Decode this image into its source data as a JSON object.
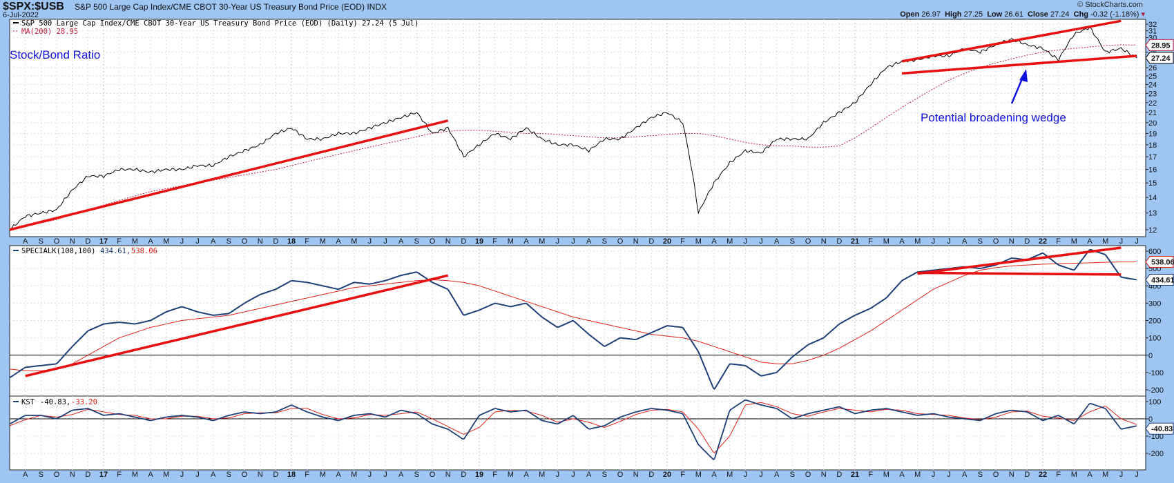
{
  "header": {
    "symbol": "$SPX:$USB",
    "name": "S&P 500 Large Cap Index/CME CBOT 30-Year US Treasury Bond Price (EOD)",
    "exchange": "INDX",
    "date": "6-Jul-2022",
    "copyright": "© StockCharts.com",
    "open_label": "Open",
    "open": "26.97",
    "high_label": "High",
    "high": "27.25",
    "low_label": "Low",
    "low": "26.61",
    "close_label": "Close",
    "close": "27.24",
    "chg_label": "Chg",
    "chg": "-0.32 (-1.18%)"
  },
  "colors": {
    "background": "#9fc5f2",
    "price": "#000000",
    "ma": "#c0203a",
    "indicator": "#1c3f78",
    "signal": "#e0201a",
    "trendline": "#e81010",
    "annotation": "#1010e0"
  },
  "chart_data": [
    {
      "type": "line",
      "panel": "price",
      "scale": "log",
      "legend": [
        "S&P 500 Large Cap Index/CME CBOT 30-Year US Treasury Bond Price (EOD) (Daily) 27.24 (5 Jul)",
        "MA(200) 28.95"
      ],
      "annotations": [
        "Stock/Bond Ratio",
        "Potential broadening wedge"
      ],
      "x_start": "2016-07",
      "x_end": "2022-07",
      "x_step": "month",
      "ylim": [
        12,
        32
      ],
      "yticks": [
        12,
        13,
        14,
        15,
        16,
        17,
        18,
        19,
        20,
        21,
        22,
        23,
        24,
        25,
        26,
        28,
        30,
        31,
        32
      ],
      "last_value_tags": [
        "28.95",
        "27.24"
      ],
      "series": [
        {
          "name": "S&P 500 Large Cap Index/CME CBOT 30-Year US Treasury Bond Price (EOD)",
          "values": [
            12.0,
            12.8,
            13.0,
            13.2,
            14.5,
            15.5,
            15.5,
            16.0,
            16.0,
            15.8,
            16.0,
            16.0,
            16.3,
            16.3,
            17.0,
            17.5,
            18.0,
            19.0,
            19.5,
            18.5,
            18.5,
            19.0,
            19.0,
            19.5,
            20.0,
            20.5,
            21.0,
            19.0,
            19.5,
            17.0,
            18.0,
            19.0,
            18.5,
            19.5,
            18.5,
            18.0,
            18.0,
            17.5,
            18.5,
            18.5,
            19.5,
            20.5,
            21.0,
            20.0,
            13.0,
            15.0,
            16.5,
            17.5,
            17.3,
            18.5,
            18.5,
            18.5,
            20.0,
            21.0,
            22.0,
            24.0,
            26.0,
            26.8,
            27.0,
            27.5,
            27.5,
            28.5,
            28.0,
            29.0,
            29.8,
            29.0,
            28.5,
            27.0,
            30.5,
            31.5,
            28.0,
            28.5,
            27.24
          ]
        },
        {
          "name": "MA(200)",
          "values": [
            12.0,
            12.2,
            12.4,
            12.6,
            12.9,
            13.2,
            13.5,
            13.8,
            14.1,
            14.4,
            14.6,
            14.8,
            15.0,
            15.2,
            15.4,
            15.6,
            15.8,
            16.0,
            16.3,
            16.6,
            16.9,
            17.2,
            17.5,
            17.8,
            18.1,
            18.4,
            18.7,
            19.0,
            19.2,
            19.3,
            19.3,
            19.2,
            19.1,
            19.0,
            19.0,
            18.9,
            18.8,
            18.7,
            18.6,
            18.6,
            18.7,
            18.8,
            18.9,
            19.0,
            19.0,
            18.8,
            18.5,
            18.2,
            18.0,
            17.9,
            17.9,
            17.8,
            17.8,
            17.9,
            18.6,
            19.5,
            20.5,
            21.5,
            22.5,
            23.5,
            24.5,
            25.3,
            26.0,
            26.6,
            27.1,
            27.6,
            28.0,
            28.3,
            28.5,
            28.7,
            28.9,
            29.0,
            28.95
          ]
        }
      ],
      "trendlines": [
        {
          "from": [
            "2016-07",
            12.0
          ],
          "to": [
            "2018-11",
            20.2
          ]
        },
        {
          "from": [
            "2021-04",
            26.8
          ],
          "to": [
            "2022-06",
            32.5
          ]
        },
        {
          "from": [
            "2021-04",
            25.3
          ],
          "to": [
            "2022-07",
            27.5
          ]
        }
      ]
    },
    {
      "type": "line",
      "panel": "specialk",
      "legend": {
        "name": "SPECIALK(100,100)",
        "value": "434.61",
        "signal": "538.06"
      },
      "ylim": [
        -200,
        600
      ],
      "yticks": [
        -200,
        -100,
        0,
        100,
        200,
        300,
        400,
        500,
        600
      ],
      "series": [
        {
          "name": "SPECIALK(100,100)",
          "values": [
            -130,
            -70,
            -60,
            -50,
            50,
            140,
            180,
            190,
            180,
            200,
            250,
            280,
            250,
            230,
            240,
            300,
            350,
            380,
            430,
            420,
            400,
            380,
            420,
            410,
            430,
            460,
            480,
            420,
            380,
            230,
            260,
            300,
            280,
            300,
            220,
            160,
            200,
            120,
            50,
            100,
            90,
            130,
            170,
            160,
            20,
            -200,
            -50,
            -60,
            -120,
            -100,
            -10,
            60,
            100,
            180,
            230,
            270,
            330,
            430,
            480,
            490,
            500,
            510,
            500,
            520,
            560,
            550,
            590,
            520,
            490,
            610,
            580,
            450,
            434.61
          ]
        },
        {
          "name": "signal",
          "values": [
            -80,
            -90,
            -90,
            -80,
            -50,
            0,
            50,
            100,
            130,
            160,
            180,
            200,
            210,
            220,
            230,
            250,
            270,
            290,
            310,
            330,
            350,
            370,
            390,
            400,
            410,
            420,
            430,
            435,
            430,
            420,
            400,
            370,
            340,
            310,
            280,
            250,
            220,
            200,
            180,
            160,
            140,
            120,
            110,
            100,
            80,
            50,
            20,
            -10,
            -40,
            -50,
            -50,
            -30,
            0,
            40,
            90,
            140,
            200,
            260,
            320,
            380,
            420,
            460,
            490,
            505,
            515,
            520,
            525,
            528,
            530,
            533,
            536,
            538,
            538.06
          ]
        }
      ],
      "trendlines": [
        {
          "from": [
            "2016-08",
            -120
          ],
          "to": [
            "2018-11",
            460
          ]
        },
        {
          "from": [
            "2021-05",
            470
          ],
          "to": [
            "2022-06",
            620
          ]
        },
        {
          "from": [
            "2021-05",
            475
          ],
          "to": [
            "2022-06",
            465
          ]
        }
      ]
    },
    {
      "type": "line",
      "panel": "kst",
      "legend": {
        "name": "KST",
        "value": "-40.83",
        "signal": "-33.20"
      },
      "ylim": [
        -250,
        130
      ],
      "yticks": [
        100,
        0,
        -100,
        -200
      ],
      "series": [
        {
          "name": "KST",
          "values": [
            -30,
            20,
            20,
            0,
            50,
            60,
            20,
            30,
            10,
            -10,
            10,
            20,
            10,
            -10,
            20,
            40,
            30,
            40,
            80,
            40,
            10,
            -10,
            20,
            30,
            10,
            50,
            30,
            -30,
            -60,
            -120,
            20,
            60,
            40,
            50,
            -10,
            -30,
            20,
            -60,
            -40,
            10,
            40,
            60,
            50,
            30,
            -150,
            -240,
            50,
            110,
            80,
            60,
            0,
            30,
            50,
            70,
            30,
            50,
            60,
            40,
            20,
            30,
            10,
            0,
            -10,
            30,
            50,
            40,
            -10,
            20,
            -30,
            90,
            60,
            -60,
            -40.83
          ]
        },
        {
          "name": "signal",
          "values": [
            -40,
            -5,
            20,
            10,
            25,
            55,
            40,
            25,
            20,
            0,
            0,
            15,
            15,
            0,
            5,
            30,
            35,
            35,
            60,
            60,
            25,
            0,
            5,
            25,
            20,
            30,
            40,
            0,
            -45,
            -90,
            -50,
            40,
            50,
            45,
            20,
            -20,
            0,
            -20,
            -50,
            -15,
            25,
            50,
            55,
            40,
            -60,
            -200,
            -100,
            80,
            95,
            70,
            30,
            15,
            40,
            60,
            50,
            40,
            55,
            50,
            30,
            25,
            20,
            5,
            -5,
            10,
            40,
            45,
            15,
            5,
            -10,
            40,
            75,
            0,
            -33.2
          ]
        }
      ]
    }
  ],
  "x_axis": {
    "months": [
      "A",
      "S",
      "O",
      "N",
      "D",
      "17",
      "F",
      "M",
      "A",
      "M",
      "J",
      "J",
      "A",
      "S",
      "O",
      "N",
      "D",
      "18",
      "F",
      "M",
      "A",
      "M",
      "J",
      "J",
      "A",
      "S",
      "O",
      "N",
      "D",
      "19",
      "F",
      "M",
      "A",
      "M",
      "J",
      "J",
      "A",
      "S",
      "O",
      "N",
      "D",
      "20",
      "F",
      "M",
      "A",
      "M",
      "J",
      "J",
      "A",
      "S",
      "O",
      "N",
      "D",
      "21",
      "F",
      "M",
      "A",
      "M",
      "J",
      "J",
      "A",
      "S",
      "O",
      "N",
      "D",
      "22",
      "F",
      "M",
      "A",
      "M",
      "J",
      "J"
    ]
  }
}
